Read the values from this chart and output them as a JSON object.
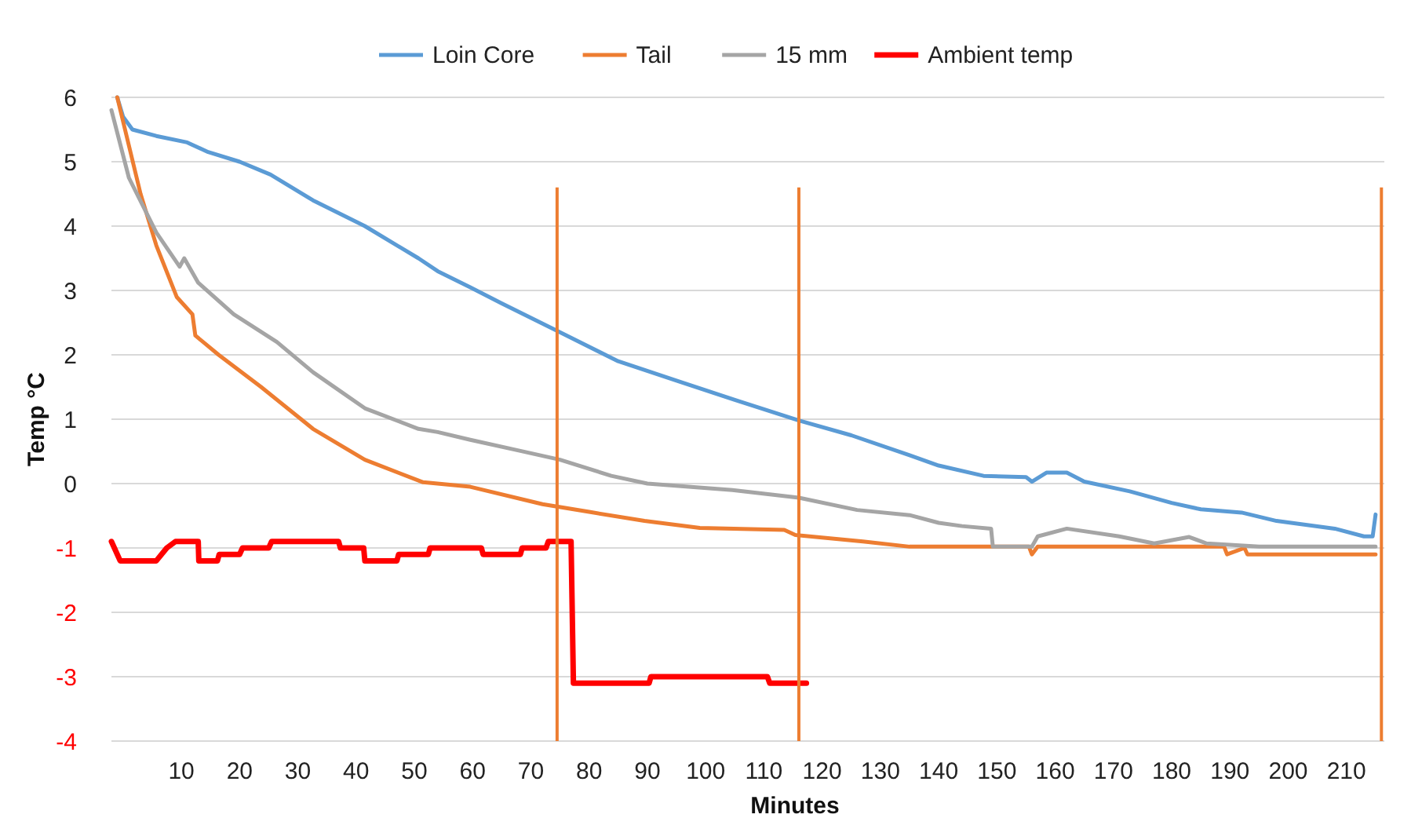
{
  "chart_data": {
    "type": "line",
    "xlabel": "Minutes",
    "ylabel": "Temp °C",
    "xlim": [
      -2,
      216.5
    ],
    "xticks": [
      10,
      20,
      30,
      40,
      50,
      60,
      70,
      80,
      90,
      100,
      110,
      120,
      130,
      140,
      150,
      160,
      170,
      180,
      190,
      200,
      210
    ],
    "ylim": [
      -4,
      6
    ],
    "yticks": [
      -4,
      -3,
      -2,
      -1,
      0,
      1,
      2,
      3,
      4,
      5,
      6
    ],
    "grid": "y",
    "legend": "top",
    "line_style": "solid",
    "marker": "none",
    "series": [
      {
        "name": "Loin Core",
        "color": "#5b9bd5",
        "x": [
          -1,
          0,
          1.6,
          5.7,
          11,
          14.6,
          20,
          25.3,
          32.6,
          41.5,
          50.7,
          54,
          59.6,
          65,
          75,
          85,
          95,
          105,
          116,
          125,
          135,
          140,
          147.7,
          155,
          156,
          158.5,
          162,
          165,
          172.8,
          180,
          185,
          192,
          198,
          208,
          213,
          214.5,
          215
        ],
        "values": [
          6,
          5.7,
          5.5,
          5.4,
          5.3,
          5.15,
          5.0,
          4.8,
          4.4,
          4.0,
          3.5,
          3.3,
          3.05,
          2.8,
          2.35,
          1.9,
          1.6,
          1.3,
          0.98,
          0.75,
          0.44,
          0.28,
          0.12,
          0.1,
          0.03,
          0.17,
          0.17,
          0.03,
          -0.12,
          -0.3,
          -0.4,
          -0.45,
          -0.58,
          -0.7,
          -0.82,
          -0.82,
          -0.48
        ]
      },
      {
        "name": "Tail",
        "color": "#ed7d31",
        "x": [
          -1,
          3,
          5.7,
          9.2,
          11.9,
          12.4,
          16.4,
          23.7,
          32.6,
          41.5,
          51.5,
          59.6,
          72,
          80,
          89.5,
          99,
          113.5,
          115.4,
          127,
          135,
          155.5,
          156,
          157,
          189,
          189.5,
          192.5,
          193,
          215
        ],
        "values": [
          6,
          4.5,
          3.7,
          2.9,
          2.63,
          2.3,
          2.0,
          1.5,
          0.85,
          0.37,
          0.02,
          -0.05,
          -0.32,
          -0.44,
          -0.58,
          -0.69,
          -0.72,
          -0.8,
          -0.9,
          -0.98,
          -0.98,
          -1.1,
          -0.98,
          -0.98,
          -1.1,
          -1.0,
          -1.1,
          -1.1
        ]
      },
      {
        "name": "15 mm",
        "color": "#a5a5a5",
        "x": [
          -2,
          1,
          5.7,
          9.7,
          10.5,
          12.9,
          19,
          26.4,
          32.6,
          41.5,
          50.7,
          54,
          59.6,
          67.6,
          75,
          83.8,
          90,
          104.6,
          116,
          126,
          135,
          140,
          144,
          149,
          149.3,
          156,
          157,
          162,
          171,
          177,
          183,
          186,
          195,
          215
        ],
        "values": [
          5.8,
          4.75,
          3.9,
          3.37,
          3.5,
          3.12,
          2.63,
          2.2,
          1.73,
          1.17,
          0.85,
          0.8,
          0.68,
          0.52,
          0.37,
          0.12,
          0,
          -0.1,
          -0.22,
          -0.41,
          -0.49,
          -0.61,
          -0.66,
          -0.7,
          -0.98,
          -0.98,
          -0.82,
          -0.7,
          -0.82,
          -0.93,
          -0.83,
          -0.93,
          -0.98,
          -0.98
        ]
      },
      {
        "name": "Ambient temp",
        "color": "#ff0000",
        "x": [
          -2,
          -0.5,
          5.7,
          7.5,
          9,
          12.9,
          13,
          16.2,
          16.5,
          20,
          20.5,
          25,
          25.5,
          37,
          37.3,
          41.3,
          41.5,
          47,
          47.3,
          52.4,
          52.7,
          61.5,
          61.8,
          68.2,
          68.5,
          72.6,
          73,
          76.9,
          77.3,
          90.3,
          90.6,
          110.6,
          111,
          117.3
        ],
        "values": [
          -0.9,
          -1.2,
          -1.2,
          -1.0,
          -0.9,
          -0.9,
          -1.2,
          -1.2,
          -1.1,
          -1.1,
          -1.0,
          -1.0,
          -0.9,
          -0.9,
          -1.0,
          -1.0,
          -1.2,
          -1.2,
          -1.1,
          -1.1,
          -1.0,
          -1.0,
          -1.1,
          -1.1,
          -1.0,
          -1.0,
          -0.9,
          -0.9,
          -3.1,
          -3.1,
          -3.0,
          -3.0,
          -3.1,
          -3.1
        ]
      }
    ],
    "ref_lines": [
      {
        "axis": "x",
        "value": 74.5,
        "color": "#ed7d31"
      },
      {
        "axis": "x",
        "value": 116,
        "color": "#ed7d31"
      },
      {
        "axis": "x",
        "value": 216,
        "color": "#ed7d31"
      }
    ]
  }
}
